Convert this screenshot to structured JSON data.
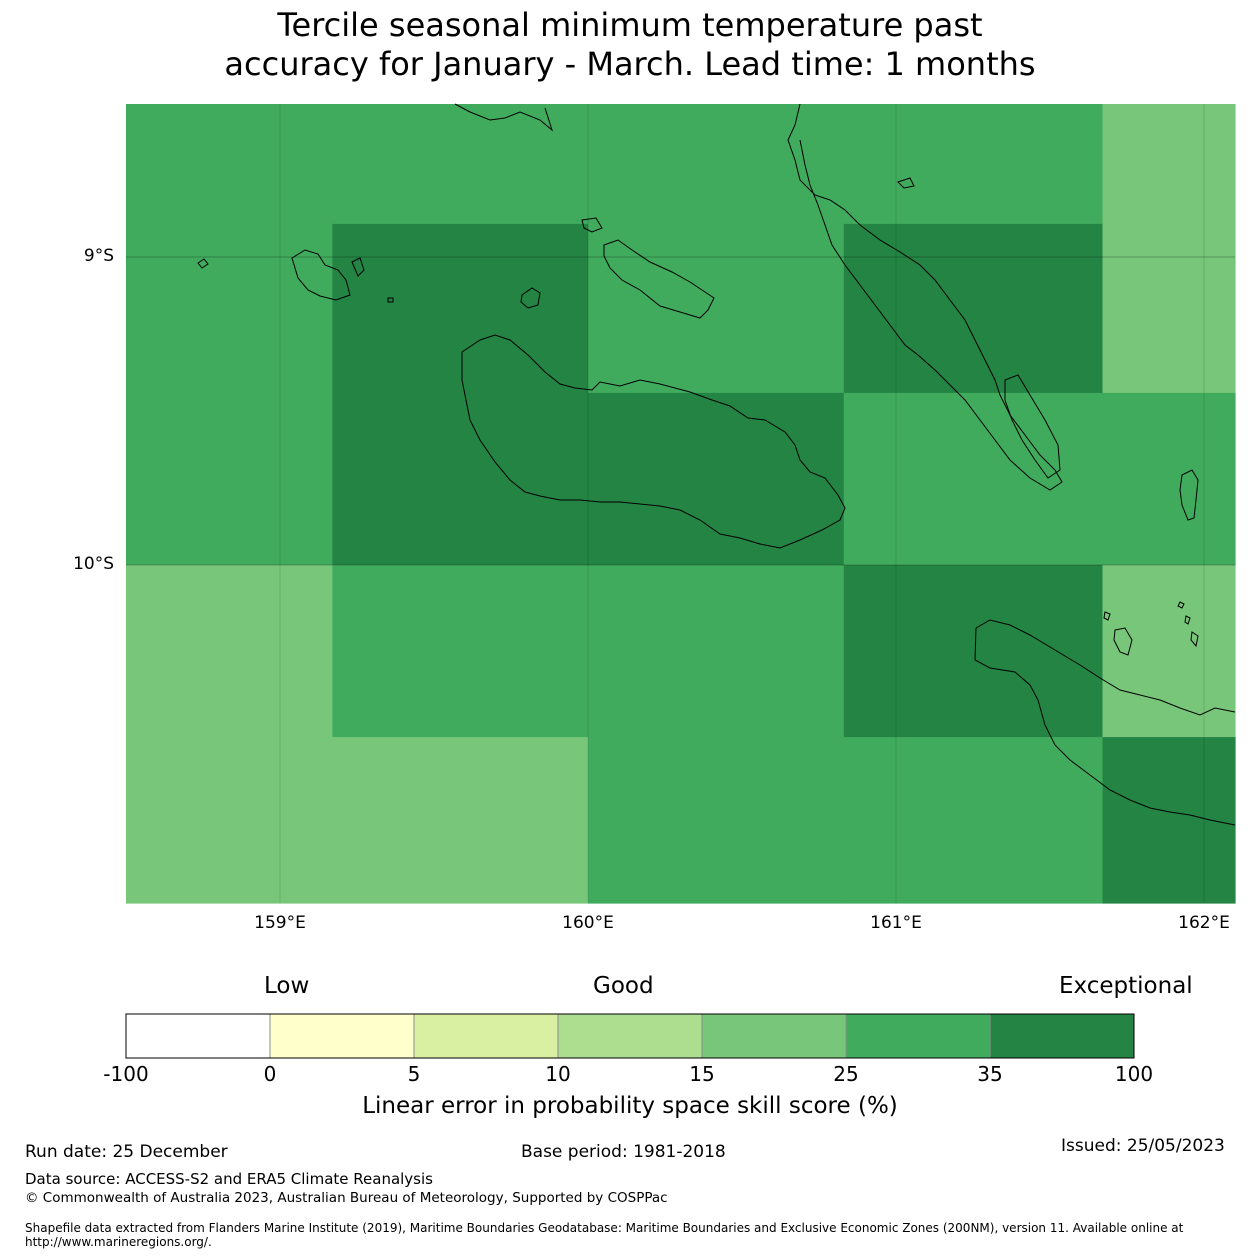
{
  "title": {
    "line1": "Tercile seasonal minimum temperature past",
    "line2": "accuracy for January - March. Lead time: 1 months"
  },
  "map": {
    "lat_labels": [
      "9°S",
      "10°S"
    ],
    "lon_labels": [
      "159°E",
      "160°E",
      "161°E",
      "162°E"
    ],
    "lon_range": [
      158.5,
      162.1
    ],
    "lat_range": [
      -8.5,
      -11.1
    ],
    "grid_cells": [
      {
        "lon": [
          158.5,
          159.17
        ],
        "lat": [
          -8.5,
          -8.89
        ],
        "class": "25-35"
      },
      {
        "lon": [
          159.17,
          160.0
        ],
        "lat": [
          -8.5,
          -8.89
        ],
        "class": "25-35"
      },
      {
        "lon": [
          160.0,
          160.83
        ],
        "lat": [
          -8.5,
          -8.89
        ],
        "class": "25-35"
      },
      {
        "lon": [
          160.83,
          161.67
        ],
        "lat": [
          -8.5,
          -8.89
        ],
        "class": "25-35"
      },
      {
        "lon": [
          161.67,
          162.1
        ],
        "lat": [
          -8.5,
          -8.89
        ],
        "class": "15-25"
      },
      {
        "lon": [
          158.5,
          159.17
        ],
        "lat": [
          -8.89,
          -10.0
        ],
        "class": "25-35"
      },
      {
        "lon": [
          159.17,
          160.0
        ],
        "lat": [
          -8.89,
          -10.0
        ],
        "class": "35-100"
      },
      {
        "lon": [
          160.0,
          160.83
        ],
        "lat": [
          -8.89,
          -9.44
        ],
        "class": "25-35"
      },
      {
        "lon": [
          160.0,
          160.83
        ],
        "lat": [
          -9.44,
          -10.0
        ],
        "class": "35-100"
      },
      {
        "lon": [
          160.83,
          161.67
        ],
        "lat": [
          -8.89,
          -9.44
        ],
        "class": "35-100"
      },
      {
        "lon": [
          160.83,
          161.67
        ],
        "lat": [
          -9.44,
          -10.0
        ],
        "class": "25-35"
      },
      {
        "lon": [
          161.67,
          162.1
        ],
        "lat": [
          -8.89,
          -9.44
        ],
        "class": "15-25"
      },
      {
        "lon": [
          161.67,
          162.1
        ],
        "lat": [
          -9.44,
          -10.0
        ],
        "class": "25-35"
      },
      {
        "lon": [
          158.5,
          159.17
        ],
        "lat": [
          -10.0,
          -11.1
        ],
        "class": "15-25"
      },
      {
        "lon": [
          159.17,
          160.0
        ],
        "lat": [
          -10.0,
          -10.56
        ],
        "class": "25-35"
      },
      {
        "lon": [
          159.17,
          160.0
        ],
        "lat": [
          -10.56,
          -11.1
        ],
        "class": "15-25"
      },
      {
        "lon": [
          160.0,
          160.83
        ],
        "lat": [
          -10.0,
          -11.1
        ],
        "class": "25-35"
      },
      {
        "lon": [
          160.83,
          161.67
        ],
        "lat": [
          -10.0,
          -10.56
        ],
        "class": "35-100"
      },
      {
        "lon": [
          160.83,
          161.67
        ],
        "lat": [
          -10.56,
          -11.1
        ],
        "class": "25-35"
      },
      {
        "lon": [
          161.67,
          162.1
        ],
        "lat": [
          -10.0,
          -10.56
        ],
        "class": "15-25"
      },
      {
        "lon": [
          161.67,
          162.1
        ],
        "lat": [
          -10.56,
          -11.1
        ],
        "class": "35-100"
      }
    ]
  },
  "colorbar": {
    "categories": [
      "Low",
      "Good",
      "Exceptional"
    ],
    "ticks": [
      "-100",
      "0",
      "5",
      "10",
      "15",
      "25",
      "35",
      "100"
    ],
    "colors": [
      "#ffffff",
      "#ffffcc",
      "#d9f0a3",
      "#addd8e",
      "#78c679",
      "#41ab5d",
      "#238443"
    ],
    "label": "Linear error in probability space skill score (%)"
  },
  "footer": {
    "run_date": "Run date: 25 December",
    "base_period": "Base period: 1981-2018",
    "issued": "Issued: 25/05/2023",
    "data_source": "Data source: ACCESS-S2 and ERA5 Climate Reanalysis",
    "copyright": "© Commonwealth of Australia 2023, Australian Bureau of Meteorology, Supported by COSPPac",
    "shapefile": "Shapefile data extracted from Flanders Marine Institute (2019), Maritime Boundaries Geodatabase: Maritime Boundaries and Exclusive Economic Zones (200NM), version 11. Available online at http://www.marineregions.org/."
  }
}
